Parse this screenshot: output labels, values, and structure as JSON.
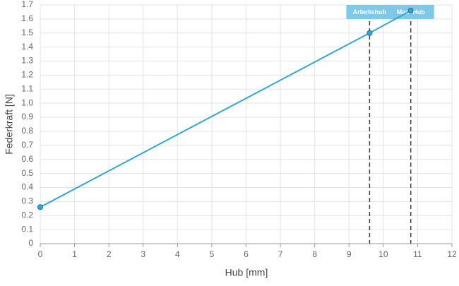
{
  "chart_data": {
    "type": "line",
    "x_label": "Hub [mm]",
    "y_label": "Federkraft [N]",
    "x": [
      0,
      9.6,
      10.8
    ],
    "series": [
      {
        "color": "#2fa8d8",
        "values": [
          0.26,
          1.5,
          1.66
        ]
      }
    ],
    "annotations": [
      {
        "label": "Arbeitshub",
        "x": 9.6
      },
      {
        "label": "Max. Hub",
        "x": 10.8
      }
    ],
    "xlim": [
      0,
      12
    ],
    "xticks": [
      0,
      1,
      2,
      3,
      4,
      5,
      6,
      7,
      8,
      9,
      10,
      11,
      12
    ],
    "ylim": [
      0,
      1.7
    ],
    "yticks": [
      0,
      0.1,
      0.2,
      0.3,
      0.4,
      0.5,
      0.6,
      0.7,
      0.8,
      0.9,
      {
        "value": 1,
        "label": "1.0"
      },
      1.1,
      1.2,
      1.3,
      1.4,
      1.5,
      1.6,
      1.7
    ],
    "grid": true
  }
}
